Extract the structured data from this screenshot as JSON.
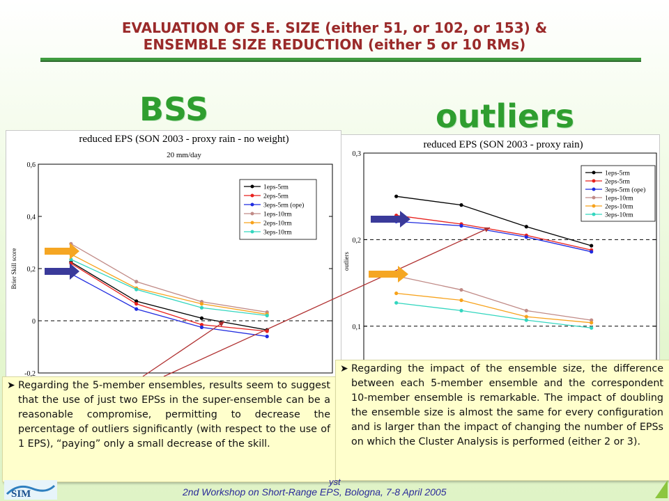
{
  "slide": {
    "title_line1": "EVALUATION OF S.E. SIZE (either 51, or 102, or 153) &",
    "title_line2": "ENSEMBLE SIZE REDUCTION (either 5 or 10 RMs)",
    "bss_label": "BSS",
    "outliers_label": "outliers",
    "footer": "2nd Workshop on Short-Range EPS, Bologna, 7-8 April 2005",
    "footer_fragment": "yst",
    "logo_text": "SIM",
    "colors": {
      "title": "#9a2a2a",
      "big_label": "#2f9e2f",
      "rule": "#3f9c3f",
      "textbox_bg": "#ffffcc",
      "arrow_line": "#b03030",
      "arrow_orange": "#f5a623",
      "arrow_navy": "#3a3a9a"
    }
  },
  "boxes": {
    "left": "Regarding the 5-member ensembles, results seem to suggest that the use of just two EPSs in the super-ensemble can be a reasonable compromise, permitting to decrease the percentage of outliers significantly (with respect to the use of 1 EPS), “paying” only a small decrease of the skill.",
    "right": "Regarding the impact of the ensemble size, the difference between each 5-member ensemble and the correspondent 10-member ensemble is remarkable. The impact of doubling the ensemble size is almost the same for every configuration and is larger than the impact of changing the number of EPSs on which the Cluster Analysis is performed (either 2 or 3)."
  },
  "chart_data": [
    {
      "type": "line",
      "title": "reduced EPS (SON 2003 - proxy rain - no weight)",
      "subtitle": "20 mm/day",
      "xlabel": "",
      "ylabel": "Brier Skill score",
      "ylim": [
        -0.2,
        0.6
      ],
      "yticks": [
        "-0,2",
        "0",
        "0,2",
        "0,4",
        "0,6"
      ],
      "x": [
        1,
        2,
        3,
        4
      ],
      "grid": false,
      "reference_line": 0,
      "legend_position": "top-right",
      "series": [
        {
          "name": "1eps-5rm",
          "color": "#000000",
          "values": [
            0.225,
            0.075,
            0.01,
            -0.035
          ]
        },
        {
          "name": "2eps-5rm",
          "color": "#e8221e",
          "values": [
            0.22,
            0.065,
            -0.015,
            -0.04
          ]
        },
        {
          "name": "3eps-5rm (ope)",
          "color": "#1f2be0",
          "values": [
            0.18,
            0.045,
            -0.025,
            -0.06
          ]
        },
        {
          "name": "1eps-10rm",
          "color": "#c08a86",
          "values": [
            0.295,
            0.15,
            0.073,
            0.033
          ]
        },
        {
          "name": "2eps-10rm",
          "color": "#f7a21b",
          "values": [
            0.255,
            0.125,
            0.065,
            0.025
          ]
        },
        {
          "name": "3eps-10rm",
          "color": "#33d6bf",
          "values": [
            0.235,
            0.12,
            0.05,
            0.02
          ]
        }
      ]
    },
    {
      "type": "line",
      "title": "reduced EPS (SON 2003 - proxy rain)",
      "xlabel": "",
      "ylabel": "outliers",
      "ylim": [
        0.05,
        0.3
      ],
      "yticks": [
        "0,1",
        "0,2",
        "0,3"
      ],
      "x": [
        1,
        2,
        3,
        4
      ],
      "grid": false,
      "reference_lines": [
        0.1,
        0.2
      ],
      "legend_position": "top-right",
      "series": [
        {
          "name": "1eps-5rm",
          "color": "#000000",
          "values": [
            0.25,
            0.24,
            0.215,
            0.193
          ]
        },
        {
          "name": "2eps-5rm",
          "color": "#e8221e",
          "values": [
            0.228,
            0.218,
            0.205,
            0.188
          ]
        },
        {
          "name": "3eps-5rm (ope)",
          "color": "#1f2be0",
          "values": [
            0.221,
            0.216,
            0.203,
            0.186
          ]
        },
        {
          "name": "1eps-10rm",
          "color": "#c08a86",
          "values": [
            0.158,
            0.142,
            0.118,
            0.107
          ]
        },
        {
          "name": "2eps-10rm",
          "color": "#f7a21b",
          "values": [
            0.138,
            0.13,
            0.111,
            0.104
          ]
        },
        {
          "name": "3eps-10rm",
          "color": "#33d6bf",
          "values": [
            0.127,
            0.118,
            0.107,
            0.098
          ]
        }
      ]
    }
  ]
}
